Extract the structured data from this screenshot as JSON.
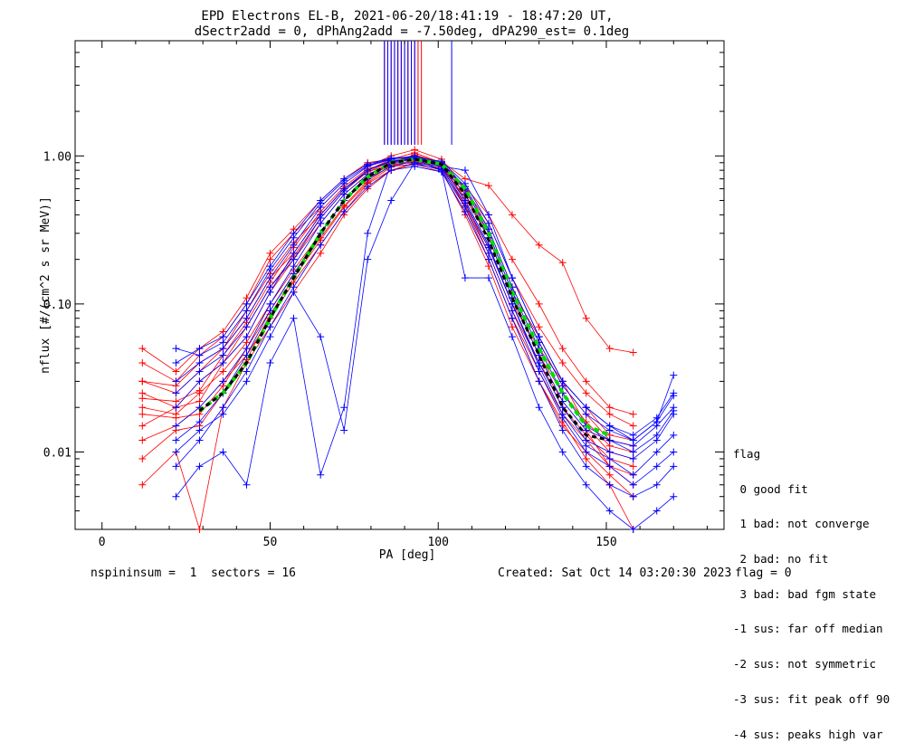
{
  "title_line1": "EPD Electrons EL-B, 2021-06-20/18:41:19 - 18:47:20 UT,",
  "title_line2": "dSectr2add = 0, dPhAng2add = -7.50deg, dPA290_est=   0.1deg",
  "footer": {
    "left": "nspininsum =  1  sectors = 16",
    "created": "Created: Sat Oct 14 03:20:30 2023",
    "flag": "flag = 0"
  },
  "legend": {
    "title": "flag",
    "items": [
      " 0 good fit",
      " 1 bad: not converge",
      " 2 bad: no fit",
      " 3 bad: bad fgm state",
      "-1 sus: far off median",
      "-2 sus: not symmetric",
      "-3 sus: fit peak off 90",
      "-4 sus: peaks high var"
    ]
  },
  "colors": {
    "red": "#ff0000",
    "blue": "#0000ff",
    "green": "#00dd00",
    "black": "#000000"
  },
  "chart_data": {
    "type": "line",
    "xlabel": "PA [deg]",
    "ylabel": "nflux [#/(cm^2 s sr MeV)]",
    "xlim": [
      -8,
      185
    ],
    "ylim": [
      0.003,
      6
    ],
    "yscale": "log",
    "xticks": [
      0,
      50,
      100,
      150
    ],
    "yticks": [
      {
        "value": 0.01,
        "label": "0.01"
      },
      {
        "value": 0.1,
        "label": "0.10"
      },
      {
        "value": 1.0,
        "label": "1.00"
      }
    ],
    "red_series": [
      {
        "x": [
          12,
          22,
          29,
          36,
          43,
          50,
          57,
          65,
          72,
          79,
          86,
          93,
          101,
          108,
          115,
          122,
          130,
          137,
          144,
          151,
          158
        ],
        "y": [
          0.03,
          0.028,
          0.04,
          0.05,
          0.08,
          0.15,
          0.22,
          0.4,
          0.6,
          0.8,
          0.95,
          1.05,
          0.9,
          0.5,
          0.25,
          0.1,
          0.05,
          0.03,
          0.02,
          0.013,
          0.012
        ]
      },
      {
        "x": [
          12,
          22,
          29,
          36,
          43,
          50,
          57,
          65,
          72,
          79,
          86,
          93,
          101,
          108,
          115,
          122,
          130,
          137,
          144,
          151,
          158
        ],
        "y": [
          0.02,
          0.018,
          0.025,
          0.035,
          0.055,
          0.1,
          0.17,
          0.3,
          0.5,
          0.7,
          0.9,
          1.0,
          0.85,
          0.45,
          0.2,
          0.08,
          0.035,
          0.018,
          0.012,
          0.008,
          0.006
        ]
      },
      {
        "x": [
          12,
          22,
          29,
          36,
          43,
          50,
          57,
          65,
          72,
          79,
          86,
          93,
          101,
          108,
          115,
          122,
          130,
          137,
          144,
          151,
          158
        ],
        "y": [
          0.015,
          0.02,
          0.03,
          0.04,
          0.06,
          0.12,
          0.2,
          0.35,
          0.55,
          0.75,
          0.85,
          0.95,
          0.88,
          0.55,
          0.3,
          0.12,
          0.06,
          0.03,
          0.015,
          0.01,
          0.009
        ]
      },
      {
        "x": [
          12,
          22,
          29,
          36,
          43,
          50,
          57,
          65,
          72,
          79,
          86,
          93,
          101,
          108,
          115,
          122,
          130,
          137,
          144,
          151,
          158
        ],
        "y": [
          0.04,
          0.03,
          0.045,
          0.06,
          0.1,
          0.2,
          0.3,
          0.45,
          0.65,
          0.85,
          1.0,
          1.1,
          0.95,
          0.6,
          0.35,
          0.15,
          0.07,
          0.04,
          0.025,
          0.018,
          0.015
        ]
      },
      {
        "x": [
          12,
          22,
          29,
          36,
          43,
          50,
          57,
          65,
          72,
          79,
          86,
          93,
          101,
          108,
          115,
          122,
          130,
          137,
          144,
          151,
          158
        ],
        "y": [
          0.012,
          0.015,
          0.02,
          0.03,
          0.045,
          0.08,
          0.14,
          0.25,
          0.42,
          0.65,
          0.8,
          0.9,
          0.8,
          0.4,
          0.18,
          0.07,
          0.03,
          0.015,
          0.01,
          0.007,
          0.005
        ]
      },
      {
        "x": [
          12,
          22,
          29,
          36,
          43,
          50,
          57,
          65,
          72,
          79,
          86,
          93,
          101,
          108,
          115,
          122,
          130,
          137,
          144,
          151,
          158
        ],
        "y": [
          0.025,
          0.02,
          0.022,
          0.04,
          0.07,
          0.13,
          0.21,
          0.38,
          0.58,
          0.78,
          0.92,
          0.98,
          0.86,
          0.52,
          0.28,
          0.11,
          0.045,
          0.025,
          0.016,
          0.011,
          0.01
        ]
      },
      {
        "x": [
          12,
          22,
          29,
          36,
          43,
          50,
          57,
          65,
          72,
          79,
          86,
          93,
          101,
          108,
          115,
          122,
          130,
          137,
          144,
          151,
          158
        ],
        "y": [
          0.05,
          0.035,
          0.05,
          0.065,
          0.11,
          0.22,
          0.32,
          0.5,
          0.7,
          0.9,
          0.95,
          1.0,
          0.9,
          0.62,
          0.4,
          0.2,
          0.1,
          0.05,
          0.03,
          0.02,
          0.018
        ]
      },
      {
        "x": [
          12,
          22,
          29,
          36,
          43,
          50,
          57,
          65,
          72,
          79,
          86,
          93,
          101,
          108,
          115,
          122,
          130,
          137,
          144,
          151,
          158
        ],
        "y": [
          0.018,
          0.017,
          0.018,
          0.028,
          0.05,
          0.09,
          0.16,
          0.28,
          0.46,
          0.68,
          0.86,
          0.92,
          0.82,
          0.48,
          0.22,
          0.09,
          0.04,
          0.02,
          0.013,
          0.009,
          0.008
        ]
      },
      {
        "x": [
          12,
          22,
          29,
          36,
          43,
          50,
          57,
          65,
          72,
          79,
          86,
          93,
          101,
          108,
          115,
          122,
          130,
          137,
          144,
          151,
          158
        ],
        "y": [
          0.006,
          0.01,
          0.003,
          0.02,
          0.04,
          0.07,
          0.12,
          0.22,
          0.4,
          0.6,
          0.8,
          0.88,
          0.78,
          0.42,
          0.2,
          0.08,
          0.03,
          0.016,
          0.009,
          0.006,
          0.003
        ]
      },
      {
        "x": [
          12,
          22,
          29,
          36,
          43,
          50,
          57,
          65,
          72,
          79,
          86,
          93,
          101,
          108,
          115,
          122,
          130,
          137,
          144,
          151,
          158
        ],
        "y": [
          0.023,
          0.022,
          0.026,
          0.045,
          0.075,
          0.14,
          0.24,
          0.42,
          0.62,
          0.82,
          0.9,
          1.02,
          0.9,
          0.58,
          0.32,
          0.13,
          0.055,
          0.028,
          0.018,
          0.012,
          0.011
        ]
      },
      {
        "x": [
          12,
          22,
          29,
          36,
          43,
          50,
          57,
          65,
          72,
          79,
          86,
          93,
          101,
          108,
          115,
          122,
          130,
          137,
          144,
          151,
          158
        ],
        "y": [
          0.009,
          0.014,
          0.015,
          0.025,
          0.042,
          0.085,
          0.15,
          0.27,
          0.45,
          0.66,
          0.84,
          0.93,
          0.84,
          0.46,
          0.24,
          0.1,
          0.04,
          0.022,
          0.014,
          0.008,
          0.007
        ]
      },
      {
        "x": [
          12,
          22,
          29,
          36,
          43,
          50,
          57,
          65,
          72,
          79,
          86,
          93,
          101,
          108,
          115,
          122,
          130,
          137,
          144,
          151,
          158
        ],
        "y": [
          0.03,
          0.025,
          0.035,
          0.05,
          0.09,
          0.16,
          0.26,
          0.4,
          0.6,
          0.78,
          0.88,
          0.97,
          0.92,
          0.7,
          0.63,
          0.4,
          0.25,
          0.19,
          0.08,
          0.05,
          0.047
        ]
      }
    ],
    "blue_series": [
      {
        "x": [
          22,
          29,
          36,
          43,
          50,
          57,
          65,
          72,
          79,
          86,
          93,
          101,
          108,
          115,
          122,
          130,
          137,
          144,
          151,
          158,
          165,
          170
        ],
        "y": [
          0.02,
          0.03,
          0.04,
          0.06,
          0.12,
          0.22,
          0.4,
          0.6,
          0.8,
          0.92,
          0.95,
          0.85,
          0.5,
          0.25,
          0.1,
          0.04,
          0.02,
          0.012,
          0.01,
          0.009,
          0.012,
          0.018
        ]
      },
      {
        "x": [
          22,
          29,
          36,
          43,
          50,
          57,
          65,
          72,
          79,
          86,
          93,
          101,
          108,
          115,
          122,
          130,
          137,
          144,
          151,
          158,
          165,
          170
        ],
        "y": [
          0.015,
          0.02,
          0.03,
          0.05,
          0.1,
          0.18,
          0.35,
          0.55,
          0.75,
          0.88,
          0.9,
          0.8,
          0.45,
          0.22,
          0.09,
          0.035,
          0.017,
          0.01,
          0.008,
          0.006,
          0.008,
          0.01
        ]
      },
      {
        "x": [
          22,
          29,
          36,
          43,
          50,
          57,
          65,
          72,
          79,
          86,
          93,
          101,
          108,
          115,
          122,
          130,
          137,
          144,
          151,
          158,
          165,
          170
        ],
        "y": [
          0.03,
          0.04,
          0.05,
          0.08,
          0.15,
          0.25,
          0.45,
          0.65,
          0.85,
          0.95,
          1.0,
          0.9,
          0.6,
          0.3,
          0.12,
          0.05,
          0.025,
          0.015,
          0.012,
          0.011,
          0.015,
          0.02
        ]
      },
      {
        "x": [
          22,
          29,
          36,
          43,
          50,
          57,
          65,
          72,
          79,
          86,
          93,
          101,
          108,
          115,
          122,
          130,
          137,
          144,
          151,
          158,
          165,
          170
        ],
        "y": [
          0.008,
          0.012,
          0.02,
          0.035,
          0.07,
          0.13,
          0.25,
          0.42,
          0.62,
          0.8,
          0.85,
          0.78,
          0.42,
          0.2,
          0.08,
          0.03,
          0.014,
          0.008,
          0.006,
          0.005,
          0.006,
          0.008
        ]
      },
      {
        "x": [
          22,
          29,
          36,
          43,
          50,
          57,
          65,
          72,
          79,
          86,
          93,
          101,
          108,
          115,
          122,
          130,
          137,
          144,
          151,
          158,
          165,
          170
        ],
        "y": [
          0.04,
          0.05,
          0.06,
          0.1,
          0.18,
          0.3,
          0.5,
          0.7,
          0.88,
          0.97,
          0.98,
          0.92,
          0.65,
          0.35,
          0.15,
          0.06,
          0.03,
          0.02,
          0.015,
          0.013,
          0.017,
          0.025
        ]
      },
      {
        "x": [
          22,
          29,
          36,
          43,
          50,
          57,
          65,
          72,
          79,
          86,
          93,
          101,
          108,
          115,
          122,
          130,
          137,
          144,
          151,
          158,
          165,
          170
        ],
        "y": [
          0.012,
          0.016,
          0.025,
          0.045,
          0.09,
          0.16,
          0.3,
          0.5,
          0.7,
          0.85,
          0.88,
          0.82,
          0.48,
          0.24,
          0.1,
          0.038,
          0.018,
          0.011,
          0.009,
          0.007,
          0.01,
          0.013
        ]
      },
      {
        "x": [
          22,
          29,
          36,
          43,
          50,
          57,
          65,
          72,
          79,
          86,
          93,
          101,
          108,
          115,
          122,
          130,
          137,
          144,
          151,
          158,
          165,
          170
        ],
        "y": [
          0.005,
          0.008,
          0.01,
          0.006,
          0.04,
          0.08,
          0.007,
          0.02,
          0.3,
          0.9,
          0.95,
          0.8,
          0.15,
          0.15,
          0.06,
          0.02,
          0.01,
          0.006,
          0.004,
          0.003,
          0.004,
          0.005
        ]
      },
      {
        "x": [
          22,
          29,
          36,
          43,
          50,
          57,
          65,
          72,
          79,
          86,
          93,
          101,
          108,
          115,
          122,
          130,
          137,
          144,
          151,
          158,
          165,
          170
        ],
        "y": [
          0.025,
          0.035,
          0.045,
          0.07,
          0.13,
          0.2,
          0.38,
          0.58,
          0.8,
          0.93,
          0.96,
          0.88,
          0.55,
          0.28,
          0.11,
          0.045,
          0.022,
          0.014,
          0.012,
          0.01,
          0.013,
          0.019
        ]
      },
      {
        "x": [
          22,
          29,
          36,
          43,
          50,
          57,
          65,
          72,
          79,
          86,
          93,
          101,
          108,
          115,
          122,
          130,
          137,
          144,
          151,
          158,
          165,
          170
        ],
        "y": [
          0.01,
          0.014,
          0.018,
          0.03,
          0.06,
          0.12,
          0.06,
          0.014,
          0.2,
          0.5,
          0.9,
          0.85,
          0.8,
          0.4,
          0.15,
          0.06,
          0.03,
          0.02,
          0.015,
          0.012,
          0.016,
          0.033
        ]
      },
      {
        "x": [
          22,
          29,
          36,
          43,
          50,
          57,
          65,
          72,
          79,
          86,
          93,
          101,
          108,
          115,
          122,
          130,
          137,
          144,
          151,
          158,
          165,
          170
        ],
        "y": [
          0.05,
          0.045,
          0.055,
          0.09,
          0.17,
          0.28,
          0.48,
          0.68,
          0.86,
          0.96,
          0.97,
          0.9,
          0.62,
          0.32,
          0.13,
          0.055,
          0.028,
          0.018,
          0.014,
          0.012,
          0.016,
          0.024
        ]
      }
    ],
    "green_median": {
      "x": [
        29,
        36,
        43,
        50,
        57,
        65,
        72,
        79,
        86,
        93,
        101,
        108,
        115,
        122,
        130,
        137,
        144,
        151
      ],
      "y": [
        0.019,
        0.025,
        0.04,
        0.08,
        0.15,
        0.3,
        0.5,
        0.72,
        0.9,
        0.95,
        0.88,
        0.6,
        0.3,
        0.12,
        0.05,
        0.025,
        0.015,
        0.013
      ]
    },
    "black_fit": {
      "x": [
        29,
        36,
        43,
        50,
        57,
        65,
        72,
        79,
        86,
        93,
        101,
        108,
        115,
        122,
        130,
        137,
        144,
        151
      ],
      "y": [
        0.019,
        0.025,
        0.04,
        0.08,
        0.15,
        0.3,
        0.5,
        0.72,
        0.9,
        0.95,
        0.88,
        0.55,
        0.27,
        0.11,
        0.045,
        0.02,
        0.013,
        0.012
      ]
    },
    "peak_markers": {
      "red_x": [
        84,
        85,
        86,
        87,
        88,
        89,
        90,
        91,
        92,
        93,
        94,
        95
      ],
      "blue_x": [
        84,
        85,
        86,
        87,
        88,
        89,
        90,
        91,
        92,
        93,
        104
      ]
    }
  }
}
